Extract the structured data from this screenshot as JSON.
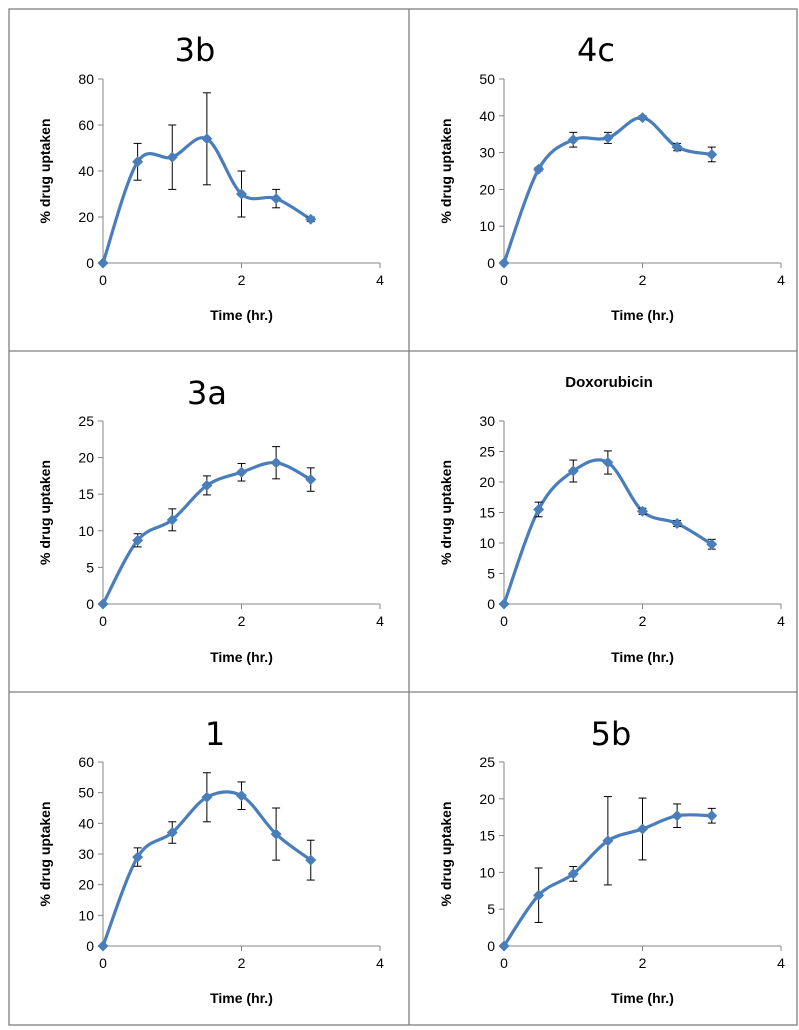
{
  "chart_data": [
    {
      "type": "line",
      "title": "3b",
      "xlabel": "Time (hr.)",
      "ylabel": "% drug uptaken",
      "xlim": [
        0,
        4
      ],
      "ylim": [
        0,
        80
      ],
      "xticks": [
        "0",
        "2",
        "4"
      ],
      "yticks": [
        "0",
        "20",
        "40",
        "60",
        "80"
      ],
      "x": [
        0,
        0.5,
        1,
        1.5,
        2,
        2.5,
        3
      ],
      "y": [
        0,
        44,
        46,
        54,
        30,
        28,
        19
      ],
      "error": [
        0,
        8,
        14,
        20,
        10,
        4,
        1
      ],
      "grid": false,
      "color": "#4a7ebb"
    },
    {
      "type": "line",
      "title": "4c",
      "xlabel": "Time (hr.)",
      "ylabel": "% drug uptaken",
      "xlim": [
        0,
        4
      ],
      "ylim": [
        0,
        50
      ],
      "xticks": [
        "0",
        "2",
        "4"
      ],
      "yticks": [
        "0",
        "10",
        "20",
        "30",
        "40",
        "50"
      ],
      "x": [
        0,
        0.5,
        1,
        1.5,
        2,
        2.5,
        3
      ],
      "y": [
        0,
        25.5,
        33.5,
        34,
        39.5,
        31.5,
        29.5
      ],
      "error": [
        0,
        0.5,
        2,
        1.5,
        0.5,
        1,
        2
      ],
      "grid": false,
      "color": "#4a7ebb"
    },
    {
      "type": "line",
      "title": "3a",
      "xlabel": "Time (hr.)",
      "ylabel": "% drug uptaken",
      "xlim": [
        0,
        4
      ],
      "ylim": [
        0,
        25
      ],
      "xticks": [
        "0",
        "2",
        "4"
      ],
      "yticks": [
        "0",
        "5",
        "10",
        "15",
        "20",
        "25"
      ],
      "x": [
        0,
        0.5,
        1,
        1.5,
        2,
        2.5,
        3
      ],
      "y": [
        0,
        8.7,
        11.5,
        16.2,
        18,
        19.3,
        17
      ],
      "error": [
        0,
        0.9,
        1.5,
        1.3,
        1.2,
        2.2,
        1.6
      ],
      "grid": false,
      "color": "#4a7ebb"
    },
    {
      "type": "line",
      "title": "Doxorubicin",
      "xlabel": "Time (hr.)",
      "ylabel": "% drug uptaken",
      "xlim": [
        0,
        4
      ],
      "ylim": [
        0,
        30
      ],
      "xticks": [
        "0",
        "2",
        "4"
      ],
      "yticks": [
        "0",
        "5",
        "10",
        "15",
        "20",
        "25",
        "30"
      ],
      "x": [
        0,
        0.5,
        1,
        1.5,
        2,
        2.5,
        3
      ],
      "y": [
        0,
        15.5,
        21.8,
        23.2,
        15.2,
        13.2,
        9.8
      ],
      "error": [
        0,
        1.2,
        1.8,
        1.9,
        0.5,
        0.5,
        0.8
      ],
      "grid": false,
      "color": "#4a7ebb"
    },
    {
      "type": "line",
      "title": "1",
      "xlabel": "Time (hr.)",
      "ylabel": "% drug uptaken",
      "xlim": [
        0,
        4
      ],
      "ylim": [
        0,
        60
      ],
      "xticks": [
        "0",
        "2",
        "4"
      ],
      "yticks": [
        "0",
        "10",
        "20",
        "30",
        "40",
        "50",
        "60"
      ],
      "x": [
        0,
        0.5,
        1,
        1.5,
        2,
        2.5,
        3
      ],
      "y": [
        0,
        29,
        37,
        48.5,
        49,
        36.5,
        28
      ],
      "error": [
        0,
        3,
        3.5,
        8,
        4.5,
        8.5,
        6.5
      ],
      "grid": false,
      "color": "#4a7ebb"
    },
    {
      "type": "line",
      "title": "5b",
      "xlabel": "Time (hr.)",
      "ylabel": "% drug uptaken",
      "xlim": [
        0,
        4
      ],
      "ylim": [
        0,
        25
      ],
      "xticks": [
        "0",
        "2",
        "4"
      ],
      "yticks": [
        "0",
        "5",
        "10",
        "15",
        "20",
        "25"
      ],
      "x": [
        0,
        0.5,
        1,
        1.5,
        2,
        2.5,
        3
      ],
      "y": [
        0,
        6.9,
        9.8,
        14.3,
        15.9,
        17.7,
        17.7
      ],
      "error": [
        0,
        3.7,
        1,
        6,
        4.2,
        1.6,
        1
      ],
      "grid": false,
      "color": "#4a7ebb"
    }
  ]
}
